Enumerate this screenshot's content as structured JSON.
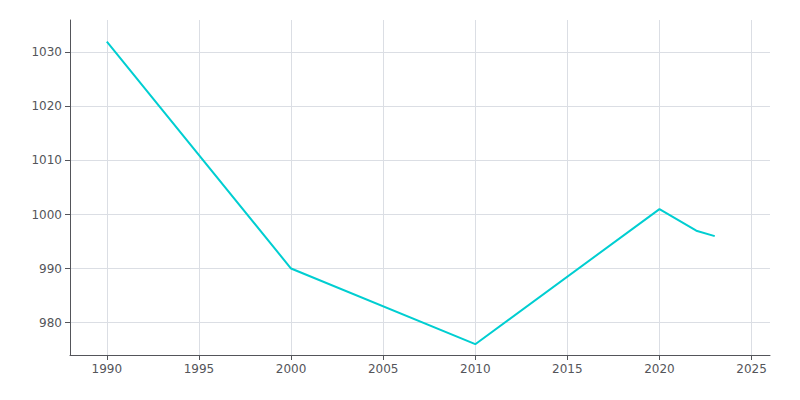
{
  "chart_data": {
    "type": "line",
    "x": [
      1990,
      2000,
      2010,
      2020,
      2022,
      2023
    ],
    "values": [
      1032,
      990,
      976,
      1001,
      997,
      996
    ],
    "color": "#00CED1",
    "xlim": [
      1988,
      2026
    ],
    "ylim": [
      974,
      1036
    ],
    "xticks": [
      1990,
      1995,
      2000,
      2005,
      2010,
      2015,
      2020,
      2025
    ],
    "yticks": [
      980,
      990,
      1000,
      1010,
      1020,
      1030
    ],
    "grid": true
  }
}
